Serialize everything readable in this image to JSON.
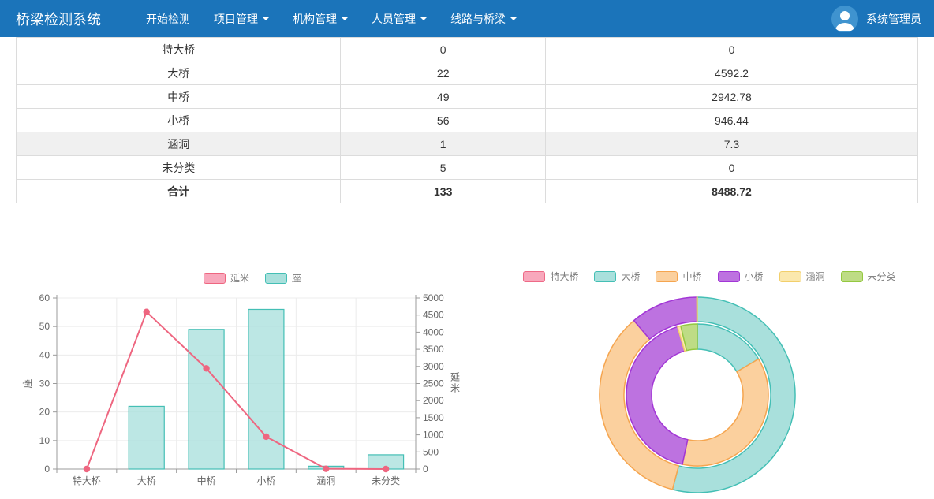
{
  "navbar": {
    "brand": "桥梁检测系统",
    "items": [
      {
        "label": "开始检测",
        "dropdown": false
      },
      {
        "label": "项目管理",
        "dropdown": true
      },
      {
        "label": "机构管理",
        "dropdown": true
      },
      {
        "label": "人员管理",
        "dropdown": true
      },
      {
        "label": "线路与桥梁",
        "dropdown": true
      }
    ],
    "user": {
      "name": "系统管理员"
    }
  },
  "colors": {
    "navbar_bg": "#1b74ba",
    "avatar_bg": "#3f93cf",
    "table_border": "#dcdcdc",
    "row_highlight": "#f0f0f0",
    "grid_line": "#ececec",
    "axis_line": "#9b9b9b",
    "tick_text": "#666666"
  },
  "table": {
    "rows": [
      {
        "cells": [
          "特大桥",
          "0",
          "0"
        ]
      },
      {
        "cells": [
          "大桥",
          "22",
          "4592.2"
        ]
      },
      {
        "cells": [
          "中桥",
          "49",
          "2942.78"
        ]
      },
      {
        "cells": [
          "小桥",
          "56",
          "946.44"
        ]
      },
      {
        "cells": [
          "涵洞",
          "1",
          "7.3"
        ],
        "highlight": true
      },
      {
        "cells": [
          "未分类",
          "5",
          "0"
        ]
      },
      {
        "cells": [
          "合计",
          "133",
          "8488.72"
        ],
        "bold": true
      }
    ]
  },
  "chart_data": [
    {
      "type": "bar",
      "title": "",
      "categories": [
        "特大桥",
        "大桥",
        "中桥",
        "小桥",
        "涵洞",
        "未分类"
      ],
      "series": [
        {
          "name": "延米",
          "kind": "line",
          "axis": "right",
          "values": [
            0,
            4592.2,
            2942.78,
            946.44,
            7.3,
            0
          ],
          "color": "#ee6680",
          "swatch_fill": "#f8a8bc"
        },
        {
          "name": "座",
          "kind": "bar",
          "axis": "left",
          "values": [
            0,
            22,
            49,
            56,
            1,
            5
          ],
          "fill": "#a9e0dc",
          "border": "#44bfb5"
        }
      ],
      "left_axis": {
        "name": "座",
        "min": 0,
        "max": 60,
        "step": 10
      },
      "right_axis": {
        "name": "延米",
        "min": 0,
        "max": 5000,
        "step": 500
      },
      "legend_position": "top",
      "grid": true
    },
    {
      "type": "pie",
      "categories": [
        "特大桥",
        "大桥",
        "中桥",
        "小桥",
        "涵洞",
        "未分类"
      ],
      "category_colors": [
        {
          "fill": "#f8a8bc",
          "border": "#ee6a87"
        },
        {
          "fill": "#a9e0dc",
          "border": "#44bfb5"
        },
        {
          "fill": "#fbd09e",
          "border": "#f5a54f"
        },
        {
          "fill": "#bd72e0",
          "border": "#a236d6"
        },
        {
          "fill": "#fbe8ad",
          "border": "#f2cf6b"
        },
        {
          "fill": "#bedc85",
          "border": "#94c840"
        }
      ],
      "series": [
        {
          "name": "延米",
          "ring": "outer",
          "values": [
            0,
            4592.2,
            2942.78,
            946.44,
            7.3,
            0
          ]
        },
        {
          "name": "座",
          "ring": "inner",
          "values": [
            0,
            22,
            49,
            56,
            1,
            5
          ]
        }
      ],
      "legend_position": "top"
    }
  ]
}
